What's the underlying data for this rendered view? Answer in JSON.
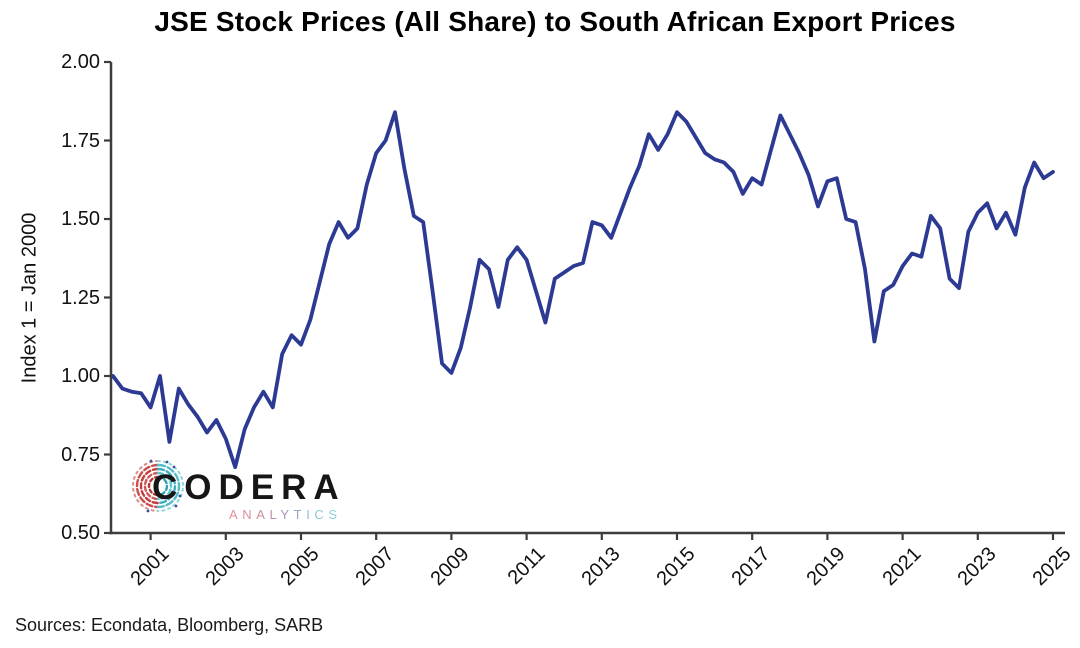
{
  "title": "JSE Stock Prices (All Share) to South African Export Prices",
  "source_note": "Sources: Econdata, Bloomberg, SARB",
  "logo": {
    "word": "CODERA",
    "subtitle": "ANALYTICS"
  },
  "chart_data": {
    "type": "line",
    "title": "JSE Stock Prices (All Share) to South African Export Prices",
    "xlabel": "",
    "ylabel": "Index 1 = Jan 2000",
    "ylim": [
      0.5,
      2.0
    ],
    "xlim": [
      2000,
      2025.3
    ],
    "grid": false,
    "legend": null,
    "line_color": "#2c3a94",
    "axis_color": "#3d3d3d",
    "y_ticks": [
      2.0,
      1.75,
      1.5,
      1.25,
      1.0,
      0.75,
      0.5
    ],
    "y_tick_labels": [
      "2.00",
      "1.75",
      "1.50",
      "1.25",
      "1.00",
      "0.75",
      "0.50"
    ],
    "x_tick_years": [
      2001,
      2003,
      2005,
      2007,
      2009,
      2011,
      2013,
      2015,
      2017,
      2019,
      2021,
      2023,
      2025
    ],
    "x_tick_labels": [
      "2001",
      "2003",
      "2005",
      "2007",
      "2009",
      "2011",
      "2013",
      "2015",
      "2017",
      "2019",
      "2021",
      "2023",
      "2025"
    ],
    "x_start_year": 2000.0,
    "x_step_years": 0.25,
    "series": [
      {
        "name": "JSE All Share to SA export prices (Index 1 = Jan 2000)",
        "values": [
          1.0,
          0.96,
          0.95,
          0.945,
          0.9,
          1.0,
          0.79,
          0.96,
          0.91,
          0.87,
          0.82,
          0.86,
          0.8,
          0.71,
          0.83,
          0.9,
          0.95,
          0.9,
          1.07,
          1.13,
          1.1,
          1.18,
          1.3,
          1.42,
          1.49,
          1.44,
          1.47,
          1.61,
          1.71,
          1.75,
          1.84,
          1.66,
          1.51,
          1.49,
          1.27,
          1.04,
          1.01,
          1.09,
          1.22,
          1.37,
          1.34,
          1.22,
          1.37,
          1.41,
          1.37,
          1.27,
          1.17,
          1.31,
          1.33,
          1.35,
          1.36,
          1.49,
          1.48,
          1.44,
          1.52,
          1.6,
          1.67,
          1.77,
          1.72,
          1.77,
          1.84,
          1.81,
          1.76,
          1.71,
          1.69,
          1.68,
          1.65,
          1.58,
          1.63,
          1.61,
          1.72,
          1.83,
          1.77,
          1.71,
          1.64,
          1.54,
          1.62,
          1.63,
          1.5,
          1.49,
          1.34,
          1.11,
          1.27,
          1.29,
          1.35,
          1.39,
          1.38,
          1.51,
          1.47,
          1.31,
          1.28,
          1.46,
          1.52,
          1.55,
          1.47,
          1.52,
          1.45,
          1.6,
          1.68,
          1.63,
          1.65
        ]
      }
    ]
  }
}
